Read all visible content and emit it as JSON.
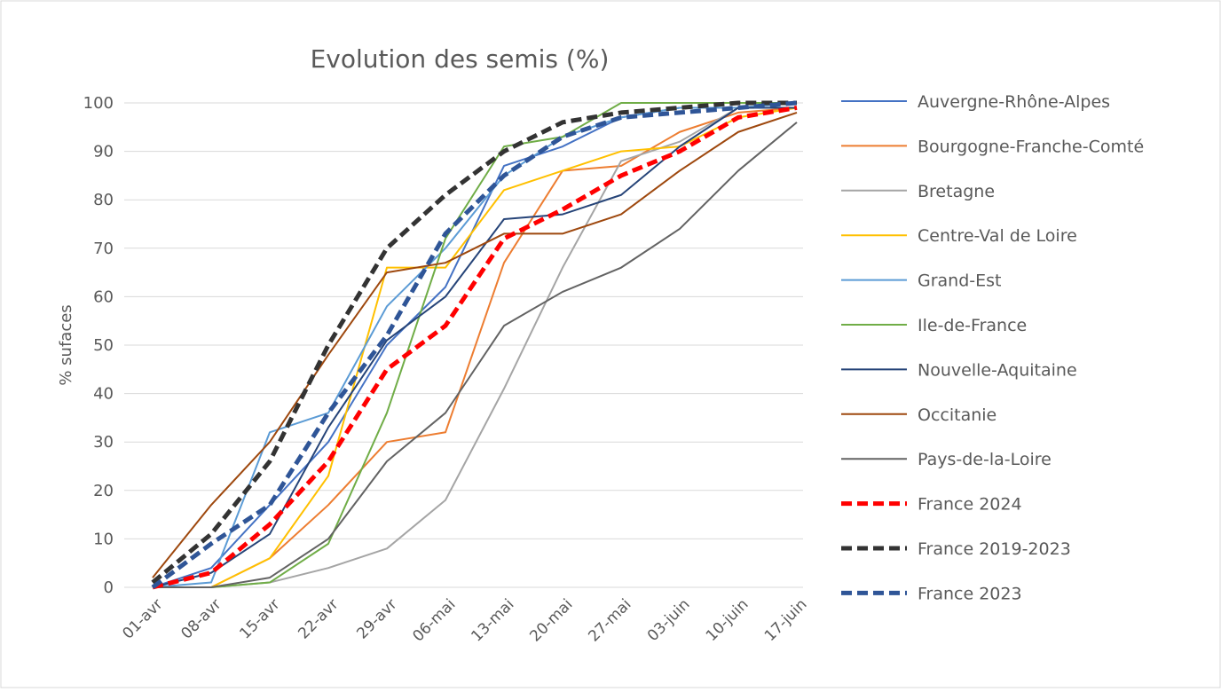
{
  "chart_data": {
    "type": "line",
    "title": "Evolution des semis (%)",
    "y_label": "% sufaces",
    "categories": [
      "01-avr",
      "08-avr",
      "15-avr",
      "22-avr",
      "29-avr",
      "06-mai",
      "13-mai",
      "20-mai",
      "27-mai",
      "03-juin",
      "10-juin",
      "17-juin"
    ],
    "ylim": [
      0,
      100
    ],
    "yticks": [
      0,
      10,
      20,
      30,
      40,
      50,
      60,
      70,
      80,
      90,
      100
    ],
    "grid": true,
    "legend": "right",
    "series": [
      {
        "name": "Auvergne-Rhône-Alpes",
        "color": "#4472c4",
        "dashed": false,
        "values": [
          0,
          4,
          17,
          30,
          50,
          62,
          87,
          91,
          97,
          99,
          99,
          100
        ]
      },
      {
        "name": "Bourgogne-Franche-Comté",
        "color": "#ed7d31",
        "dashed": false,
        "values": [
          0,
          0,
          6,
          17,
          30,
          32,
          67,
          86,
          87,
          94,
          98,
          99
        ]
      },
      {
        "name": "Bretagne",
        "color": "#a5a5a5",
        "dashed": false,
        "values": [
          0,
          0,
          1,
          4,
          8,
          18,
          41,
          66,
          88,
          92,
          99,
          100
        ]
      },
      {
        "name": "Centre-Val de Loire",
        "color": "#ffc000",
        "dashed": false,
        "values": [
          0,
          0,
          6,
          23,
          66,
          66,
          82,
          86,
          90,
          91,
          97,
          99
        ]
      },
      {
        "name": "Grand-Est",
        "color": "#5b9bd5",
        "dashed": false,
        "values": [
          0,
          1,
          32,
          36,
          58,
          70,
          85,
          93,
          97,
          99,
          99,
          100
        ]
      },
      {
        "name": "Ile-de-France",
        "color": "#70ad47",
        "dashed": false,
        "values": [
          0,
          0,
          1,
          9,
          36,
          72,
          91,
          93,
          100,
          100,
          100,
          100
        ]
      },
      {
        "name": "Nouvelle-Aquitaine",
        "color": "#264478",
        "dashed": false,
        "values": [
          0,
          3,
          11,
          33,
          51,
          60,
          76,
          77,
          81,
          91,
          99,
          99
        ]
      },
      {
        "name": "Occitanie",
        "color": "#9e480e",
        "dashed": false,
        "values": [
          2,
          17,
          30,
          48,
          65,
          67,
          73,
          73,
          77,
          86,
          94,
          98
        ]
      },
      {
        "name": "Pays-de-la-Loire",
        "color": "#636363",
        "dashed": false,
        "values": [
          0,
          0,
          2,
          10,
          26,
          36,
          54,
          61,
          66,
          74,
          86,
          96
        ]
      },
      {
        "name": "France 2024",
        "color": "#ff0000",
        "dashed": true,
        "values": [
          0,
          3,
          13,
          26,
          45,
          54,
          72,
          78,
          85,
          90,
          97,
          99
        ]
      },
      {
        "name": "France 2019-2023",
        "color": "#333333",
        "dashed": true,
        "values": [
          1,
          11,
          26,
          50,
          70,
          81,
          90,
          96,
          98,
          99,
          100,
          100
        ]
      },
      {
        "name": "France 2023",
        "color": "#2f5597",
        "dashed": true,
        "values": [
          0,
          9,
          17,
          36,
          52,
          73,
          85,
          93,
          97,
          98,
          99,
          100
        ]
      }
    ]
  }
}
